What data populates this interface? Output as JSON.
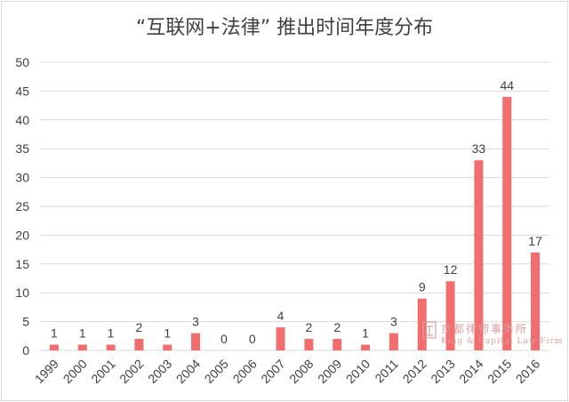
{
  "chart_data": {
    "type": "bar",
    "title": "“互联网+法律” 推出时间年度分布",
    "xlabel": "",
    "ylabel": "",
    "ylim": [
      0,
      50
    ],
    "yticks": [
      0,
      5,
      10,
      15,
      20,
      25,
      30,
      35,
      40,
      45,
      50
    ],
    "categories": [
      "1999",
      "2000",
      "2001",
      "2002",
      "2003",
      "2004",
      "2005",
      "2006",
      "2007",
      "2008",
      "2009",
      "2010",
      "2011",
      "2012",
      "2013",
      "2014",
      "2015",
      "2016"
    ],
    "values": [
      1,
      1,
      1,
      2,
      1,
      3,
      0,
      0,
      4,
      2,
      2,
      1,
      3,
      9,
      12,
      33,
      44,
      17
    ],
    "grid": true,
    "legend": "none",
    "bar_color": "#f26d6d",
    "grid_color": "#d9d9d9"
  },
  "watermark": {
    "chinese": "京都律师事务所",
    "english": "King & Capital Law Firm"
  }
}
